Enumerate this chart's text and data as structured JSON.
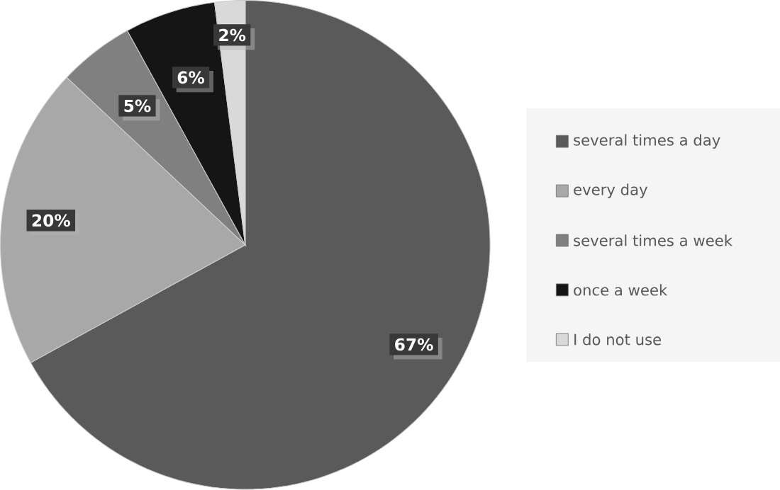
{
  "chart_data": {
    "type": "pie",
    "categories": [
      "several times a day",
      "every day",
      "several times a week",
      "once a week",
      "I do not use"
    ],
    "values": [
      67,
      20,
      5,
      6,
      2
    ],
    "value_labels": [
      "67%",
      "20%",
      "5%",
      "6%",
      "2%"
    ],
    "colors": [
      "#5a5a5a",
      "#a8a8a8",
      "#808080",
      "#151515",
      "#d9d9d9"
    ],
    "legend": "right"
  }
}
